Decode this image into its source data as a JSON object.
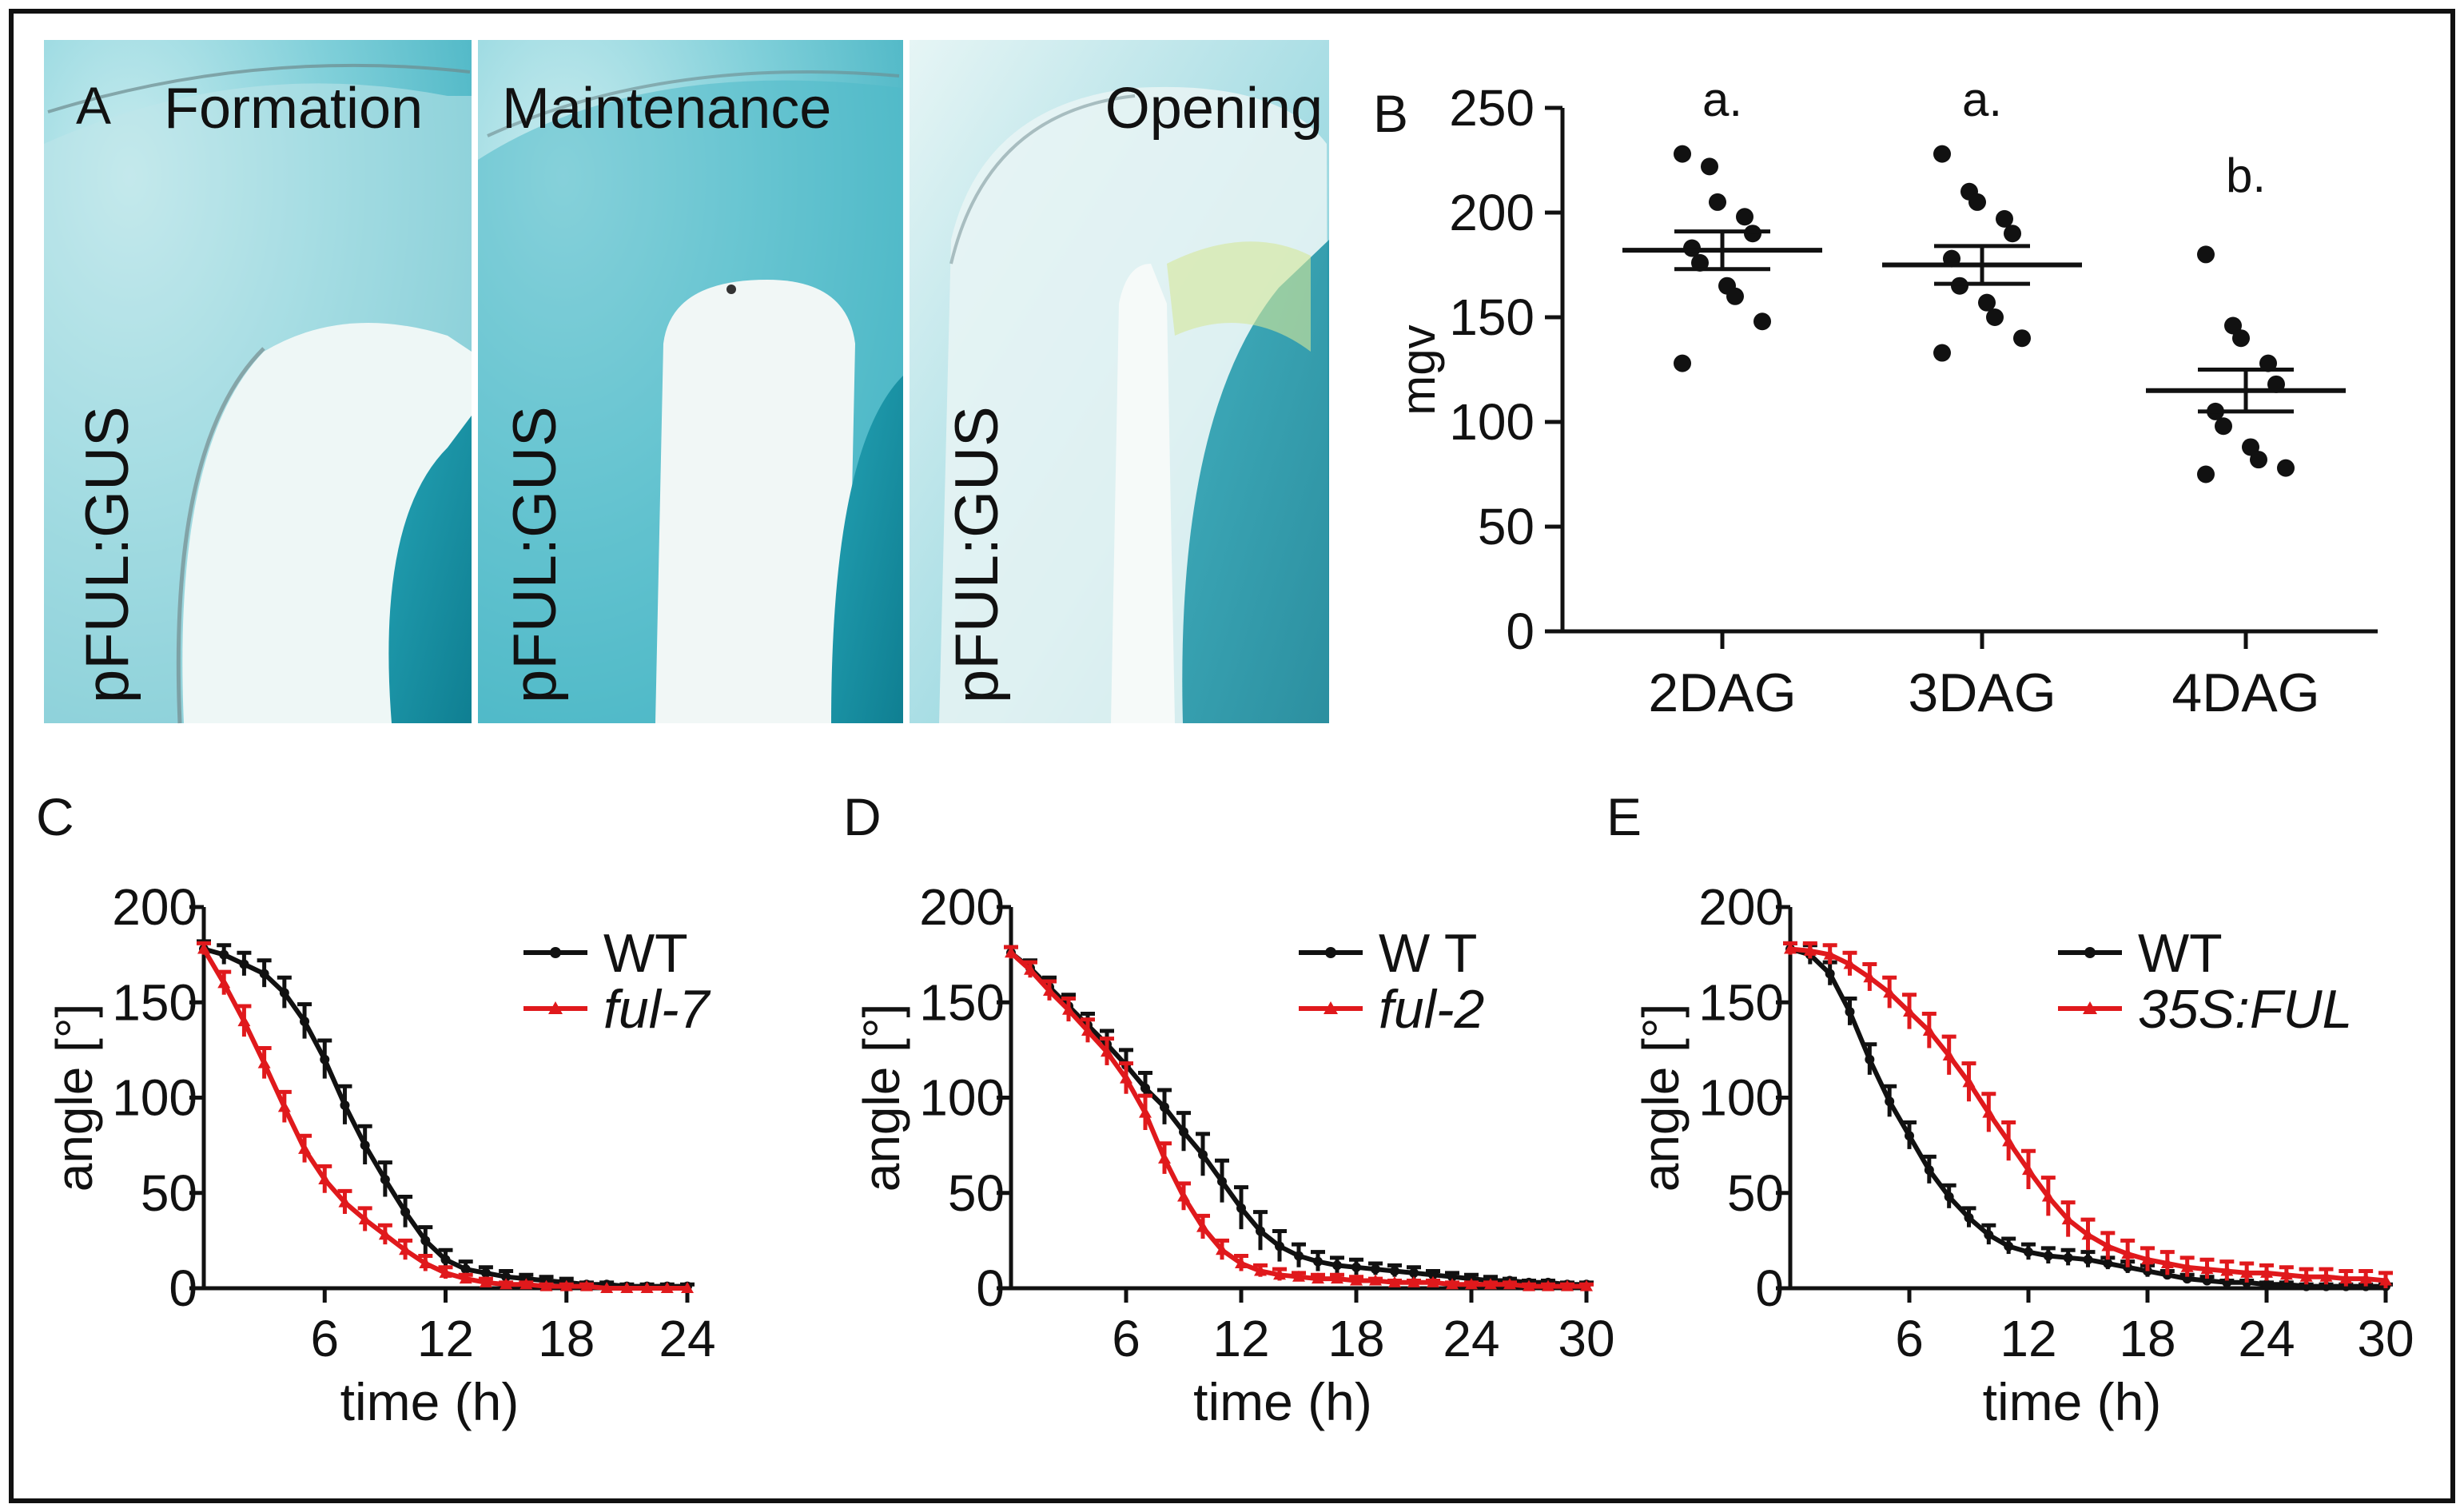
{
  "panel_a": {
    "letter": "A",
    "images": [
      {
        "title": "Formation",
        "label": "pFUL:GUS"
      },
      {
        "title": "Maintenance",
        "label": "pFUL:GUS"
      },
      {
        "title": "Opening",
        "label": "pFUL:GUS"
      }
    ]
  },
  "colors": {
    "black": "#111111",
    "red": "#e0191c",
    "stain": "#1a9cb0",
    "stain_light": "#8fd3dc",
    "tissue": "#dceff0"
  },
  "chart_data": [
    {
      "panel": "B",
      "type": "scatter",
      "ylabel": "mgv",
      "xlabel": "",
      "ylim": [
        0,
        250
      ],
      "yticks": [
        0,
        50,
        100,
        150,
        200,
        250
      ],
      "categories": [
        "2DAG",
        "3DAG",
        "4DAG"
      ],
      "significance": [
        "a.",
        "a.",
        "b."
      ],
      "points": [
        [
          228,
          222,
          205,
          198,
          190,
          183,
          176,
          165,
          160,
          148,
          128
        ],
        [
          228,
          210,
          205,
          197,
          190,
          178,
          165,
          157,
          150,
          140,
          133
        ],
        [
          180,
          146,
          140,
          128,
          118,
          105,
          98,
          88,
          82,
          78,
          75
        ]
      ],
      "means": [
        182,
        175,
        115
      ],
      "sem": [
        9,
        9,
        10
      ]
    },
    {
      "panel": "C",
      "type": "line",
      "xlabel": "time (h)",
      "ylabel": "angle [°]",
      "xlim": [
        0,
        24
      ],
      "ylim": [
        0,
        200
      ],
      "xticks": [
        6,
        12,
        18,
        24
      ],
      "yticks": [
        0,
        50,
        100,
        150,
        200
      ],
      "series": [
        {
          "name": "WT",
          "color": "#111111",
          "italic": false,
          "x": [
            0,
            1,
            2,
            3,
            4,
            5,
            6,
            7,
            8,
            9,
            10,
            11,
            12,
            13,
            14,
            15,
            16,
            17,
            18,
            19,
            20,
            21,
            22,
            23,
            24
          ],
          "y": [
            178,
            175,
            170,
            165,
            155,
            140,
            120,
            96,
            75,
            57,
            40,
            25,
            15,
            10,
            8,
            6,
            5,
            4,
            3,
            2,
            2,
            1,
            1,
            1,
            1
          ],
          "err": [
            4,
            5,
            6,
            7,
            8,
            9,
            10,
            10,
            10,
            9,
            8,
            7,
            5,
            4,
            3,
            3,
            2,
            2,
            2,
            1,
            1,
            1,
            1,
            1,
            1
          ]
        },
        {
          "name": "ful-7",
          "color": "#e0191c",
          "italic": true,
          "x": [
            0,
            1,
            2,
            3,
            4,
            5,
            6,
            7,
            8,
            9,
            10,
            11,
            12,
            13,
            14,
            15,
            16,
            17,
            18,
            19,
            20,
            21,
            22,
            23,
            24
          ],
          "y": [
            178,
            160,
            140,
            118,
            95,
            73,
            57,
            45,
            36,
            28,
            20,
            13,
            8,
            5,
            3,
            2,
            2,
            1,
            1,
            1,
            0,
            0,
            0,
            0,
            0
          ],
          "err": [
            3,
            6,
            8,
            8,
            8,
            7,
            7,
            6,
            6,
            5,
            5,
            4,
            3,
            2,
            2,
            1,
            1,
            1,
            1,
            1,
            0,
            0,
            0,
            0,
            0
          ]
        }
      ]
    },
    {
      "panel": "D",
      "type": "line",
      "xlabel": "time (h)",
      "ylabel": "angle [°]",
      "xlim": [
        0,
        30
      ],
      "ylim": [
        0,
        200
      ],
      "xticks": [
        6,
        12,
        18,
        24,
        30
      ],
      "yticks": [
        0,
        50,
        100,
        150,
        200
      ],
      "series": [
        {
          "name": "W T",
          "color": "#111111",
          "italic": false,
          "x": [
            0,
            1,
            2,
            3,
            4,
            5,
            6,
            7,
            8,
            9,
            10,
            11,
            12,
            13,
            14,
            15,
            16,
            17,
            18,
            19,
            20,
            21,
            22,
            23,
            24,
            25,
            26,
            27,
            28,
            29,
            30
          ],
          "y": [
            176,
            168,
            158,
            148,
            138,
            128,
            117,
            105,
            95,
            82,
            70,
            56,
            42,
            30,
            22,
            17,
            14,
            12,
            11,
            10,
            9,
            8,
            7,
            6,
            5,
            4,
            4,
            3,
            3,
            2,
            2
          ],
          "err": [
            3,
            4,
            5,
            6,
            6,
            7,
            8,
            8,
            9,
            10,
            11,
            11,
            11,
            10,
            8,
            6,
            5,
            4,
            4,
            3,
            3,
            3,
            2,
            2,
            2,
            2,
            1,
            1,
            1,
            1,
            1
          ]
        },
        {
          "name": "ful-2",
          "color": "#e0191c",
          "italic": true,
          "x": [
            0,
            1,
            2,
            3,
            4,
            5,
            6,
            7,
            8,
            9,
            10,
            11,
            12,
            13,
            14,
            15,
            16,
            17,
            18,
            19,
            20,
            21,
            22,
            23,
            24,
            25,
            26,
            27,
            28,
            29,
            30
          ],
          "y": [
            176,
            167,
            156,
            146,
            135,
            124,
            110,
            92,
            68,
            48,
            32,
            20,
            13,
            9,
            7,
            6,
            5,
            5,
            4,
            4,
            3,
            3,
            3,
            2,
            2,
            2,
            2,
            1,
            1,
            1,
            1
          ],
          "err": [
            3,
            4,
            5,
            6,
            6,
            7,
            8,
            9,
            8,
            7,
            6,
            5,
            4,
            3,
            3,
            2,
            2,
            2,
            2,
            1,
            1,
            1,
            1,
            1,
            1,
            1,
            1,
            1,
            1,
            1,
            1
          ]
        }
      ]
    },
    {
      "panel": "E",
      "type": "line",
      "xlabel": "time (h)",
      "ylabel": "angle [°]",
      "xlim": [
        0,
        30
      ],
      "ylim": [
        0,
        200
      ],
      "xticks": [
        6,
        12,
        18,
        24,
        30
      ],
      "yticks": [
        0,
        50,
        100,
        150,
        200
      ],
      "series": [
        {
          "name": "WT",
          "color": "#111111",
          "italic": false,
          "x": [
            0,
            1,
            2,
            3,
            4,
            5,
            6,
            7,
            8,
            9,
            10,
            11,
            12,
            13,
            14,
            15,
            16,
            17,
            18,
            19,
            20,
            21,
            22,
            23,
            24,
            25,
            26,
            27,
            28,
            29,
            30
          ],
          "y": [
            178,
            175,
            165,
            145,
            120,
            98,
            80,
            62,
            48,
            37,
            28,
            22,
            19,
            17,
            16,
            15,
            13,
            11,
            9,
            7,
            5,
            4,
            3,
            3,
            2,
            2,
            1,
            1,
            1,
            1,
            1
          ],
          "err": [
            3,
            5,
            6,
            7,
            8,
            8,
            7,
            7,
            6,
            5,
            5,
            4,
            4,
            4,
            4,
            4,
            3,
            3,
            3,
            2,
            2,
            2,
            1,
            1,
            1,
            1,
            1,
            1,
            1,
            1,
            1
          ]
        },
        {
          "name": "35S:FUL",
          "color": "#e0191c",
          "italic": true,
          "x": [
            0,
            1,
            2,
            3,
            4,
            5,
            6,
            7,
            8,
            9,
            10,
            11,
            12,
            13,
            14,
            15,
            16,
            17,
            18,
            19,
            20,
            21,
            22,
            23,
            24,
            25,
            26,
            27,
            28,
            29,
            30
          ],
          "y": [
            178,
            177,
            175,
            170,
            163,
            155,
            145,
            135,
            122,
            108,
            92,
            77,
            62,
            48,
            36,
            28,
            22,
            18,
            15,
            13,
            11,
            10,
            9,
            8,
            8,
            7,
            6,
            6,
            5,
            5,
            4
          ],
          "err": [
            3,
            4,
            5,
            6,
            7,
            8,
            9,
            9,
            10,
            10,
            10,
            10,
            10,
            10,
            9,
            8,
            7,
            7,
            6,
            6,
            5,
            5,
            5,
            5,
            4,
            4,
            4,
            4,
            4,
            4,
            4
          ]
        }
      ]
    }
  ]
}
